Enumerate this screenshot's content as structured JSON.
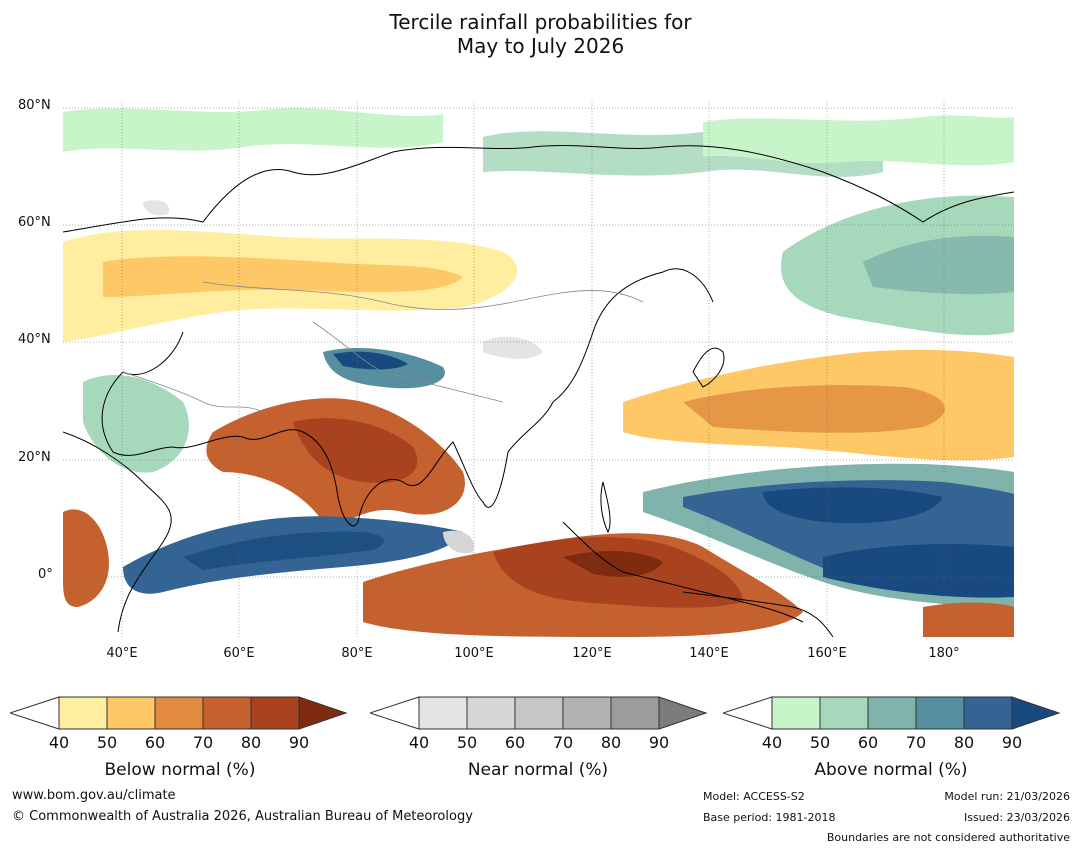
{
  "title_line1": "Tercile rainfall probabilities for",
  "title_line2": "May to July 2026",
  "map": {
    "lat_labels": [
      "80°N",
      "60°N",
      "40°N",
      "20°N",
      "0°"
    ],
    "lon_labels": [
      "40°E",
      "60°E",
      "80°E",
      "100°E",
      "120°E",
      "140°E",
      "160°E",
      "180°"
    ],
    "extent": {
      "lon_min": 30,
      "lon_max": 192,
      "lat_min": -10,
      "lat_max": 81
    }
  },
  "colorbars": {
    "below": {
      "title": "Below normal (%)",
      "ticks": [
        "40",
        "50",
        "60",
        "70",
        "80",
        "90"
      ],
      "colors": [
        "#ffeda0",
        "#fdc865",
        "#e08b3e",
        "#c4612e",
        "#a9431f",
        "#7f2b10"
      ]
    },
    "near": {
      "title": "Near normal (%)",
      "ticks": [
        "40",
        "50",
        "60",
        "70",
        "80",
        "90"
      ],
      "colors": [
        "#e4e4e4",
        "#d6d6d6",
        "#c6c6c6",
        "#b2b2b2",
        "#9c9c9c",
        "#7c7c7c"
      ]
    },
    "above": {
      "title": "Above normal (%)",
      "ticks": [
        "40",
        "50",
        "60",
        "70",
        "80",
        "90"
      ],
      "colors": [
        "#c7f5c9",
        "#a6d8bb",
        "#7fb3ab",
        "#5690a0",
        "#336493",
        "#184a80"
      ]
    }
  },
  "footer": {
    "website": "www.bom.gov.au/climate",
    "copyright": "© Commonwealth of Australia 2026, Australian Bureau of Meteorology",
    "model": "Model: ACCESS-S2",
    "base_period": "Base period: 1981-2018",
    "model_run": "Model run: 21/03/2026",
    "issued": "Issued: 23/03/2026",
    "disclaimer": "Boundaries are not considered authoritative"
  }
}
